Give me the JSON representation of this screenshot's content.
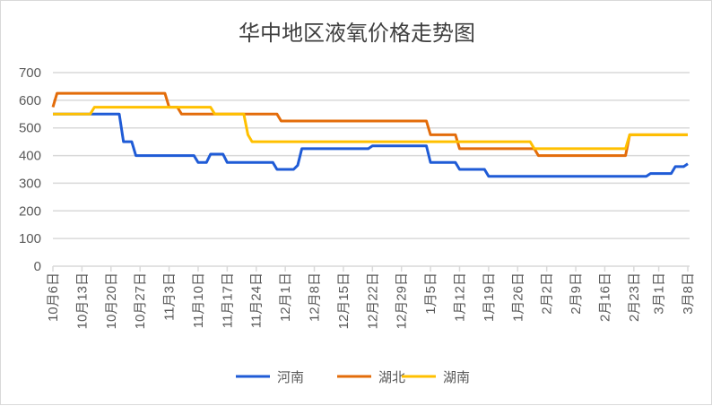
{
  "chart_data": {
    "type": "line",
    "title": "华中地区液氧价格走势图",
    "xlabel": "",
    "ylabel": "",
    "ylim": [
      0,
      700
    ],
    "yticks": [
      0,
      100,
      200,
      300,
      400,
      500,
      600,
      700
    ],
    "grid": true,
    "legend_position": "bottom",
    "x_unit": "days since 10月6日",
    "xlim": [
      0,
      153
    ],
    "xtick_labels": [
      "10月6日",
      "10月13日",
      "10月20日",
      "10月27日",
      "11月3日",
      "11月10日",
      "11月17日",
      "11月24日",
      "12月1日",
      "12月8日",
      "12月15日",
      "12月22日",
      "12月29日",
      "1月5日",
      "1月12日",
      "1月19日",
      "1月26日",
      "2月2日",
      "2月9日",
      "2月16日",
      "2月23日",
      "3月1日",
      "3月8日"
    ],
    "xtick_days": [
      0,
      7,
      14,
      21,
      28,
      35,
      42,
      49,
      56,
      63,
      70,
      77,
      84,
      91,
      98,
      105,
      112,
      119,
      126,
      133,
      140,
      146,
      153
    ],
    "series": [
      {
        "name": "河南",
        "color": "#1f5bd6",
        "points": [
          [
            0,
            550
          ],
          [
            16,
            550
          ],
          [
            17,
            450
          ],
          [
            19,
            450
          ],
          [
            20,
            400
          ],
          [
            34,
            400
          ],
          [
            35,
            375
          ],
          [
            37,
            375
          ],
          [
            38,
            405
          ],
          [
            41,
            405
          ],
          [
            42,
            375
          ],
          [
            53,
            375
          ],
          [
            54,
            350
          ],
          [
            58,
            350
          ],
          [
            59,
            365
          ],
          [
            60,
            425
          ],
          [
            76,
            425
          ],
          [
            77,
            435
          ],
          [
            90,
            435
          ],
          [
            91,
            375
          ],
          [
            97,
            375
          ],
          [
            98,
            350
          ],
          [
            104,
            350
          ],
          [
            105,
            325
          ],
          [
            143,
            325
          ],
          [
            144,
            335
          ],
          [
            149,
            335
          ],
          [
            150,
            360
          ],
          [
            152,
            360
          ],
          [
            153,
            370
          ]
        ]
      },
      {
        "name": "湖北",
        "color": "#e36c0a",
        "points": [
          [
            0,
            575
          ],
          [
            1,
            625
          ],
          [
            27,
            625
          ],
          [
            28,
            575
          ],
          [
            30,
            575
          ],
          [
            31,
            550
          ],
          [
            54,
            550
          ],
          [
            55,
            525
          ],
          [
            90,
            525
          ],
          [
            91,
            475
          ],
          [
            97,
            475
          ],
          [
            98,
            425
          ],
          [
            116,
            425
          ],
          [
            117,
            400
          ],
          [
            138,
            400
          ],
          [
            139,
            475
          ],
          [
            153,
            475
          ]
        ]
      },
      {
        "name": "湖南",
        "color": "#ffc000",
        "points": [
          [
            0,
            550
          ],
          [
            9,
            550
          ],
          [
            10,
            575
          ],
          [
            38,
            575
          ],
          [
            39,
            550
          ],
          [
            46,
            550
          ],
          [
            47,
            475
          ],
          [
            48,
            450
          ],
          [
            115,
            450
          ],
          [
            116,
            425
          ],
          [
            138,
            425
          ],
          [
            139,
            475
          ],
          [
            153,
            475
          ]
        ]
      }
    ]
  }
}
